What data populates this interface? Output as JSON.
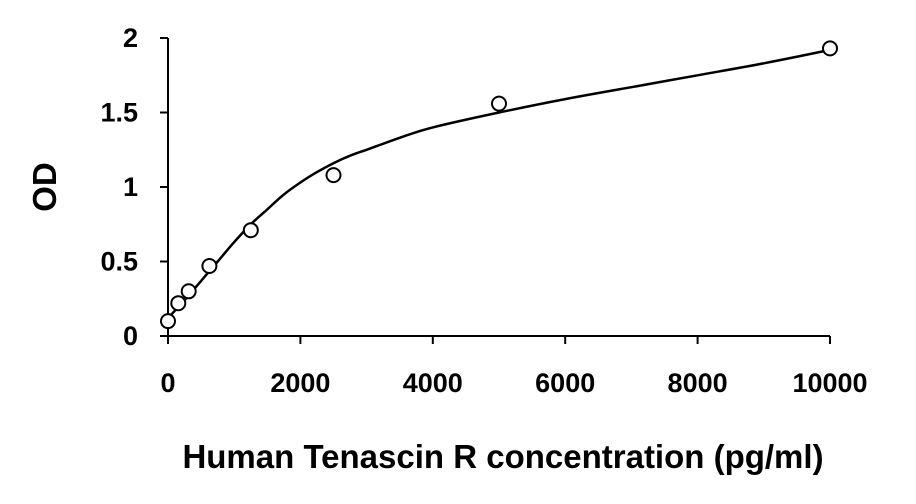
{
  "chart_data": {
    "type": "scatter",
    "title": "",
    "xlabel": "Human Tenascin R concentration (pg/ml)",
    "ylabel": "OD",
    "xlim": [
      0,
      10000
    ],
    "ylim": [
      0,
      2
    ],
    "x_ticks": [
      "0",
      "2000",
      "4000",
      "6000",
      "8000",
      "10000"
    ],
    "y_ticks": [
      "0",
      "0.5",
      "1",
      "1.5",
      "2"
    ],
    "grid": false,
    "legend": "none",
    "series": [
      {
        "marker": "open-circle",
        "x": [
          0,
          156,
          312,
          625,
          1250,
          2500,
          5000,
          10000
        ],
        "y": [
          0.1,
          0.22,
          0.3,
          0.47,
          0.71,
          1.08,
          1.56,
          1.93
        ]
      }
    ],
    "fit_curve": {
      "type": "smooth",
      "x": [
        0,
        250,
        500,
        750,
        1000,
        1250,
        1500,
        1750,
        2000,
        2250,
        2500,
        2750,
        3000,
        3500,
        4000,
        5000,
        6000,
        7000,
        8000,
        9000,
        10000
      ],
      "y": [
        0.12,
        0.24,
        0.37,
        0.5,
        0.63,
        0.75,
        0.85,
        0.95,
        1.03,
        1.1,
        1.16,
        1.21,
        1.25,
        1.33,
        1.4,
        1.5,
        1.59,
        1.67,
        1.75,
        1.83,
        1.92
      ]
    },
    "colors": {
      "marker": "#000000",
      "curve": "#000000",
      "axis": "#000000"
    }
  }
}
